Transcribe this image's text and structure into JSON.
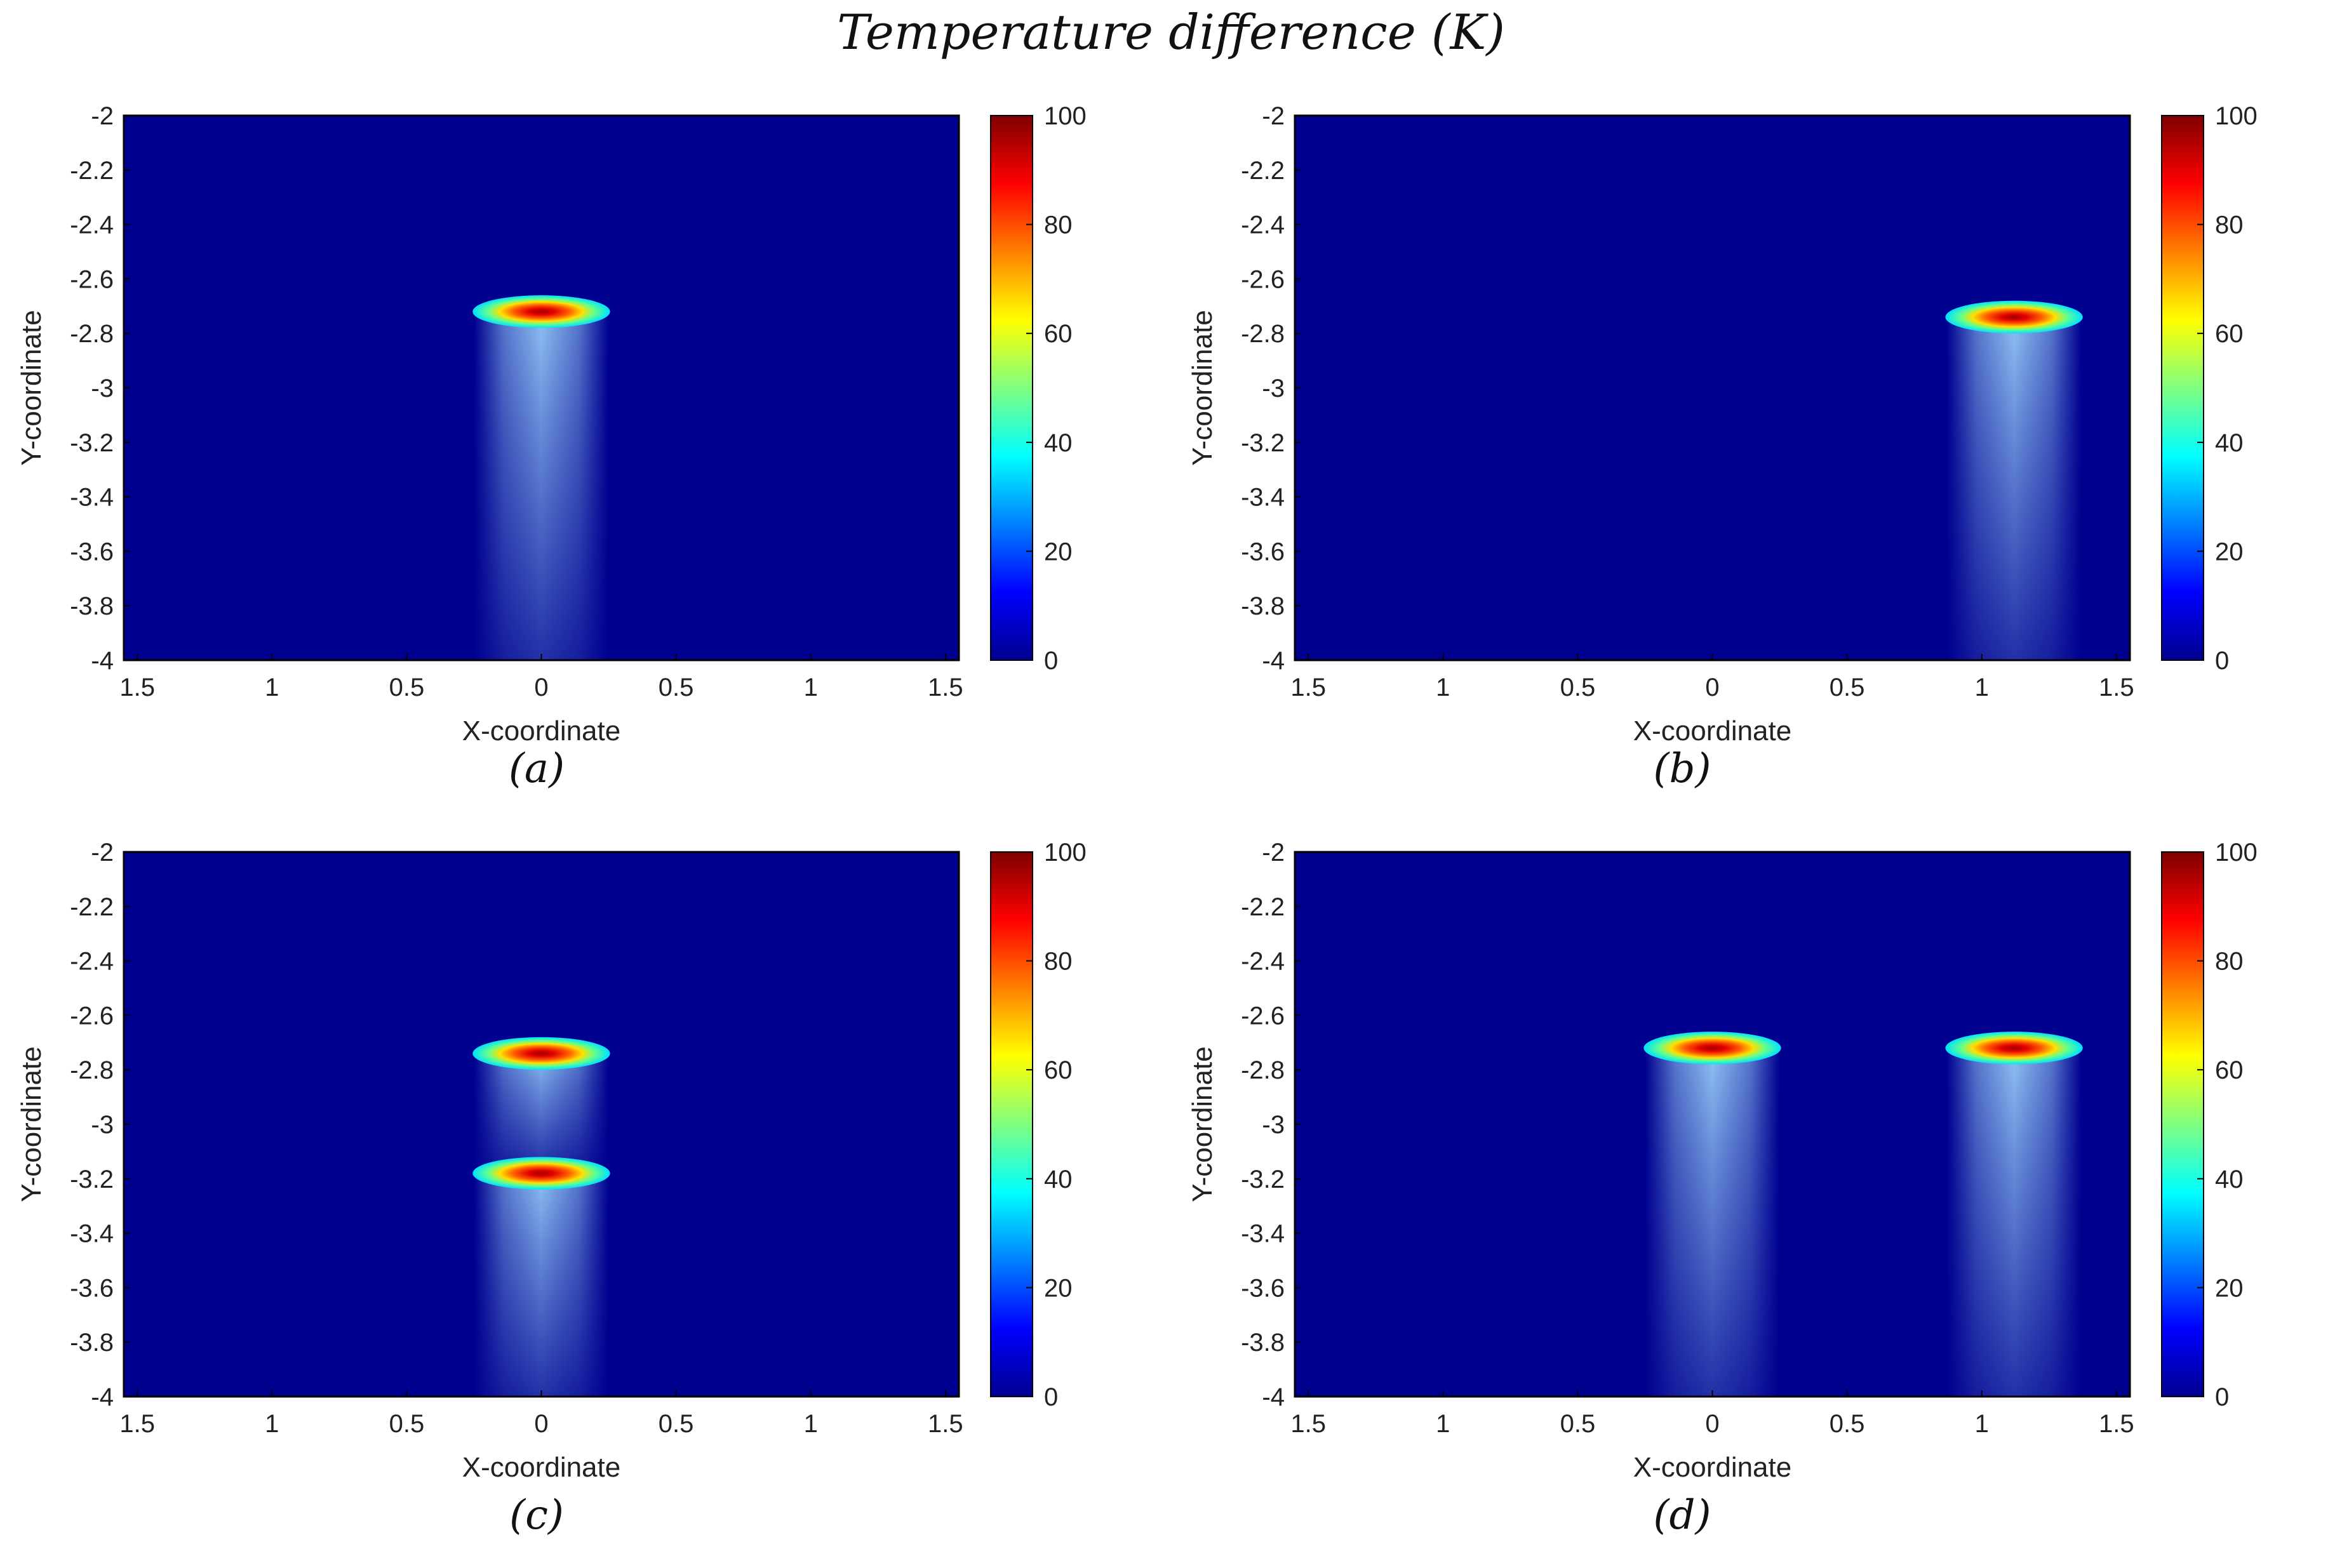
{
  "figure": {
    "title": "Temperature difference (K)"
  },
  "colors": {
    "background": "#00008f",
    "frame": "#000000",
    "text": "#222222"
  },
  "colormap": {
    "name": "jet",
    "stops": [
      "#00008f",
      "#0000ff",
      "#0080ff",
      "#00ffff",
      "#80ff80",
      "#ffff00",
      "#ff8000",
      "#ff0000",
      "#800000"
    ]
  },
  "chart_data": [
    {
      "type": "heatmap",
      "label": "(a)",
      "xlabel": "X-coordinate",
      "ylabel": "Y-coordinate",
      "xlim": [
        -1.55,
        1.55
      ],
      "ylim": [
        -4,
        -2
      ],
      "xticks": [
        -1.5,
        -1,
        -0.5,
        0,
        0.5,
        1,
        1.5
      ],
      "xtick_labels": [
        "1.5",
        "1",
        "0.5",
        "0",
        "0.5",
        "1",
        "1.5"
      ],
      "yticks": [
        -2,
        -2.2,
        -2.4,
        -2.6,
        -2.8,
        -3,
        -3.2,
        -3.4,
        -3.6,
        -3.8,
        -4
      ],
      "ytick_labels": [
        "-2",
        "-2.2",
        "-2.4",
        "-2.6",
        "-2.8",
        "-3",
        "-3.2",
        "-3.4",
        "-3.6",
        "-3.8",
        "-4"
      ],
      "colorbar": {
        "min": 0,
        "max": 100,
        "ticks": [
          0,
          20,
          40,
          60,
          80,
          100
        ]
      },
      "sources": [
        {
          "x": 0,
          "y": -2.72,
          "peak": 100,
          "plume_width": 0.5,
          "plume_bottom": -4
        }
      ]
    },
    {
      "type": "heatmap",
      "label": "(b)",
      "xlabel": "X-coordinate",
      "ylabel": "Y-coordinate",
      "xlim": [
        -1.55,
        1.55
      ],
      "ylim": [
        -4,
        -2
      ],
      "xticks": [
        -1.5,
        -1,
        -0.5,
        0,
        0.5,
        1,
        1.5
      ],
      "xtick_labels": [
        "1.5",
        "1",
        "0.5",
        "0",
        "0.5",
        "1",
        "1.5"
      ],
      "yticks": [
        -2,
        -2.2,
        -2.4,
        -2.6,
        -2.8,
        -3,
        -3.2,
        -3.4,
        -3.6,
        -3.8,
        -4
      ],
      "ytick_labels": [
        "-2",
        "-2.2",
        "-2.4",
        "-2.6",
        "-2.8",
        "-3",
        "-3.2",
        "-3.4",
        "-3.6",
        "-3.8",
        "-4"
      ],
      "colorbar": {
        "min": 0,
        "max": 100,
        "ticks": [
          0,
          20,
          40,
          60,
          80,
          100
        ]
      },
      "sources": [
        {
          "x": 1.12,
          "y": -2.74,
          "peak": 100,
          "plume_width": 0.5,
          "plume_bottom": -4
        }
      ]
    },
    {
      "type": "heatmap",
      "label": "(c)",
      "xlabel": "X-coordinate",
      "ylabel": "Y-coordinate",
      "xlim": [
        -1.55,
        1.55
      ],
      "ylim": [
        -4,
        -2
      ],
      "xticks": [
        -1.5,
        -1,
        -0.5,
        0,
        0.5,
        1,
        1.5
      ],
      "xtick_labels": [
        "1.5",
        "1",
        "0.5",
        "0",
        "0.5",
        "1",
        "1.5"
      ],
      "yticks": [
        -2,
        -2.2,
        -2.4,
        -2.6,
        -2.8,
        -3,
        -3.2,
        -3.4,
        -3.6,
        -3.8,
        -4
      ],
      "ytick_labels": [
        "-2",
        "-2.2",
        "-2.4",
        "-2.6",
        "-2.8",
        "-3",
        "-3.2",
        "-3.4",
        "-3.6",
        "-3.8",
        "-4"
      ],
      "colorbar": {
        "min": 0,
        "max": 100,
        "ticks": [
          0,
          20,
          40,
          60,
          80,
          100
        ]
      },
      "sources": [
        {
          "x": 0,
          "y": -2.74,
          "peak": 100,
          "plume_width": 0.5,
          "plume_bottom": -3.15
        },
        {
          "x": 0,
          "y": -3.18,
          "peak": 100,
          "plume_width": 0.5,
          "plume_bottom": -4
        }
      ]
    },
    {
      "type": "heatmap",
      "label": "(d)",
      "xlabel": "X-coordinate",
      "ylabel": "Y-coordinate",
      "xlim": [
        -1.55,
        1.55
      ],
      "ylim": [
        -4,
        -2
      ],
      "xticks": [
        -1.5,
        -1,
        -0.5,
        0,
        0.5,
        1,
        1.5
      ],
      "xtick_labels": [
        "1.5",
        "1",
        "0.5",
        "0",
        "0.5",
        "1",
        "1.5"
      ],
      "yticks": [
        -2,
        -2.2,
        -2.4,
        -2.6,
        -2.8,
        -3,
        -3.2,
        -3.4,
        -3.6,
        -3.8,
        -4
      ],
      "ytick_labels": [
        "-2",
        "-2.2",
        "-2.4",
        "-2.6",
        "-2.8",
        "-3",
        "-3.2",
        "-3.4",
        "-3.6",
        "-3.8",
        "-4"
      ],
      "colorbar": {
        "min": 0,
        "max": 100,
        "ticks": [
          0,
          20,
          40,
          60,
          80,
          100
        ]
      },
      "sources": [
        {
          "x": 0,
          "y": -2.72,
          "peak": 100,
          "plume_width": 0.5,
          "plume_bottom": -4
        },
        {
          "x": 1.12,
          "y": -2.72,
          "peak": 100,
          "plume_width": 0.5,
          "plume_bottom": -4
        }
      ]
    }
  ]
}
